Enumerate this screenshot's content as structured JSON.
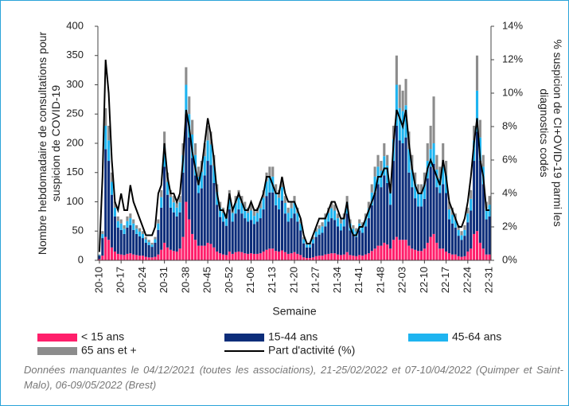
{
  "chart_data": {
    "type": "bar",
    "ylabel": "Nombre hebdomadaire de consultations pour suspicion de COVID-19",
    "y2label": "% suspicion de CI+OVID-19 parmi les diagnostics codés",
    "xlabel": "Semaine",
    "note": "Données manquantes le 04/12/2021 (toutes les associations), 21-25/02/2022 et 07-10/04/2022 (Quimper et Saint-Malo), 06-09/05/2022 (Brest)",
    "categories": [
      "20-10",
      null,
      null,
      null,
      null,
      null,
      null,
      "20-17",
      null,
      null,
      null,
      null,
      null,
      null,
      "20-24",
      null,
      null,
      null,
      null,
      null,
      null,
      "20-31",
      null,
      null,
      null,
      null,
      null,
      null,
      "20-38",
      null,
      null,
      null,
      null,
      null,
      null,
      "20-45",
      null,
      null,
      null,
      null,
      null,
      null,
      "20-52",
      null,
      null,
      null,
      null,
      null,
      null,
      "21-06",
      null,
      null,
      null,
      null,
      null,
      null,
      "21-13",
      null,
      null,
      null,
      null,
      null,
      null,
      "21-20",
      null,
      null,
      null,
      null,
      null,
      null,
      "21-27",
      null,
      null,
      null,
      null,
      null,
      null,
      "21-34",
      null,
      null,
      null,
      null,
      null,
      null,
      "21-41",
      null,
      null,
      null,
      null,
      null,
      null,
      "21-48",
      null,
      null,
      null,
      null,
      null,
      null,
      "22-03",
      null,
      null,
      null,
      null,
      null,
      null,
      "22-10",
      null,
      null,
      null,
      null,
      null,
      null,
      "22-17",
      null,
      null,
      null,
      null,
      null,
      null,
      "22-24",
      null,
      null,
      null,
      null,
      null,
      null,
      "22-31"
    ],
    "series": [
      {
        "name": "< 15 ans",
        "color": "#ff1f6b",
        "values": [
          2,
          8,
          40,
          35,
          22,
          15,
          11,
          10,
          9,
          11,
          12,
          10,
          9,
          8,
          8,
          6,
          5,
          5,
          6,
          10,
          18,
          30,
          22,
          18,
          16,
          15,
          20,
          40,
          100,
          70,
          45,
          35,
          25,
          25,
          25,
          30,
          28,
          22,
          15,
          12,
          10,
          9,
          15,
          11,
          14,
          15,
          14,
          12,
          11,
          12,
          11,
          11,
          12,
          15,
          18,
          20,
          20,
          16,
          15,
          17,
          14,
          11,
          12,
          14,
          11,
          9,
          5,
          4,
          4,
          5,
          7,
          8,
          8,
          10,
          11,
          12,
          12,
          10,
          9,
          10,
          14,
          9,
          8,
          7,
          9,
          8,
          10,
          12,
          16,
          20,
          25,
          25,
          30,
          27,
          20,
          35,
          40,
          35,
          35,
          35,
          25,
          20,
          18,
          16,
          16,
          20,
          30,
          40,
          45,
          30,
          20,
          20,
          15,
          12,
          10,
          10,
          7,
          6,
          7,
          15,
          20,
          45,
          50,
          30,
          20,
          10,
          10
        ]
      },
      {
        "name": "15-44 ans",
        "color": "#0d2d7a",
        "values": [
          6,
          30,
          150,
          135,
          90,
          60,
          45,
          42,
          36,
          45,
          48,
          42,
          36,
          33,
          30,
          24,
          21,
          18,
          24,
          42,
          72,
          130,
          90,
          72,
          66,
          60,
          62,
          110,
          150,
          140,
          130,
          110,
          90,
          98,
          120,
          140,
          135,
          110,
          80,
          62,
          56,
          50,
          72,
          55,
          66,
          72,
          66,
          60,
          55,
          57,
          51,
          55,
          60,
          72,
          92,
          96,
          96,
          78,
          72,
          85,
          66,
          55,
          60,
          66,
          55,
          42,
          24,
          18,
          18,
          24,
          33,
          36,
          39,
          48,
          55,
          60,
          57,
          48,
          42,
          48,
          66,
          42,
          36,
          33,
          42,
          39,
          48,
          60,
          78,
          96,
          105,
          100,
          115,
          105,
          75,
          135,
          190,
          170,
          165,
          175,
          125,
          105,
          88,
          76,
          76,
          85,
          110,
          120,
          120,
          95,
          95,
          110,
          100,
          58,
          53,
          46,
          35,
          29,
          35,
          50,
          65,
          125,
          170,
          140,
          110,
          60,
          65
        ]
      },
      {
        "name": "45-64 ans",
        "color": "#1eb4f0",
        "values": [
          1,
          7,
          40,
          35,
          22,
          15,
          11,
          11,
          9,
          11,
          12,
          11,
          9,
          8,
          7,
          6,
          5,
          4,
          6,
          11,
          18,
          35,
          22,
          18,
          17,
          15,
          17,
          30,
          50,
          40,
          40,
          35,
          28,
          28,
          33,
          35,
          35,
          30,
          22,
          16,
          15,
          13,
          20,
          15,
          18,
          20,
          18,
          17,
          15,
          16,
          14,
          15,
          17,
          20,
          25,
          27,
          27,
          22,
          20,
          23,
          18,
          15,
          17,
          18,
          15,
          12,
          7,
          5,
          5,
          7,
          9,
          10,
          11,
          14,
          15,
          17,
          16,
          14,
          12,
          14,
          18,
          12,
          10,
          9,
          12,
          11,
          14,
          17,
          22,
          27,
          30,
          28,
          33,
          30,
          22,
          37,
          70,
          55,
          55,
          55,
          40,
          30,
          25,
          22,
          22,
          25,
          30,
          30,
          35,
          30,
          25,
          30,
          30,
          17,
          15,
          13,
          10,
          8,
          10,
          15,
          20,
          35,
          70,
          40,
          30,
          18,
          20
        ]
      },
      {
        "name": "65 ans et +",
        "color": "#8c8c8c",
        "values": [
          1,
          5,
          30,
          25,
          16,
          10,
          8,
          7,
          6,
          8,
          8,
          7,
          6,
          6,
          5,
          4,
          4,
          3,
          4,
          7,
          12,
          25,
          16,
          12,
          11,
          10,
          11,
          20,
          30,
          30,
          25,
          20,
          17,
          19,
          22,
          25,
          22,
          18,
          13,
          10,
          9,
          8,
          13,
          9,
          12,
          13,
          12,
          11,
          9,
          10,
          9,
          9,
          11,
          13,
          15,
          17,
          17,
          14,
          13,
          15,
          12,
          9,
          11,
          12,
          9,
          7,
          4,
          3,
          3,
          4,
          6,
          6,
          7,
          8,
          9,
          11,
          10,
          8,
          7,
          8,
          12,
          7,
          6,
          6,
          7,
          7,
          8,
          11,
          14,
          17,
          20,
          17,
          22,
          18,
          13,
          23,
          50,
          40,
          35,
          45,
          30,
          25,
          19,
          16,
          16,
          20,
          30,
          40,
          80,
          25,
          20,
          40,
          25,
          13,
          12,
          11,
          8,
          7,
          8,
          10,
          15,
          25,
          60,
          30,
          20,
          12,
          15
        ]
      },
      {
        "name": "Part d'activité (%)",
        "color": "#000000",
        "axis": "y2",
        "values": [
          0.5,
          5,
          12,
          10,
          6,
          3.5,
          3,
          4,
          3,
          3,
          4.5,
          3.5,
          3,
          2.5,
          2,
          1.5,
          1.5,
          1.5,
          2,
          4,
          4.5,
          7,
          5,
          4,
          4,
          3.5,
          4,
          6,
          9,
          8,
          6.5,
          5.5,
          4.5,
          5.5,
          7,
          8.5,
          7.5,
          6,
          4,
          3,
          3,
          2.5,
          4,
          3,
          3.5,
          4,
          3.5,
          3,
          3,
          3.5,
          3,
          3,
          3.5,
          4,
          5,
          5,
          4.5,
          4,
          4,
          5,
          4,
          3.5,
          3.5,
          3.5,
          3,
          2.5,
          1.5,
          1,
          1,
          1.5,
          2,
          2.5,
          2.5,
          2.5,
          3,
          3.5,
          3.5,
          3,
          2.5,
          2.5,
          3.5,
          2,
          1.5,
          1.5,
          2,
          2,
          2.5,
          3,
          3.5,
          4,
          5,
          5,
          5.5,
          5.5,
          4,
          7,
          9,
          8.5,
          8,
          9,
          7,
          5.5,
          4.5,
          4,
          4,
          4.5,
          5.5,
          6,
          5.5,
          5,
          4.5,
          6,
          5,
          3.5,
          3,
          2.5,
          2,
          2,
          2.5,
          3.5,
          5,
          7,
          8.5,
          6,
          5,
          3,
          3
        ]
      }
    ],
    "ylim": [
      0,
      400
    ],
    "yticks": [
      0,
      50,
      100,
      150,
      200,
      250,
      300,
      350,
      400
    ],
    "y2lim": [
      0,
      14
    ],
    "y2ticks": [
      {
        "value": 0,
        "label": "0%"
      },
      {
        "value": 2,
        "label": "2%"
      },
      {
        "value": 4,
        "label": "4%"
      },
      {
        "value": 6,
        "label": "6%"
      },
      {
        "value": 8,
        "label": "8%"
      },
      {
        "value": 10,
        "label": "10%"
      },
      {
        "value": 12,
        "label": "12%"
      },
      {
        "value": 14,
        "label": "14%"
      }
    ],
    "stacked": true,
    "grid": false
  }
}
